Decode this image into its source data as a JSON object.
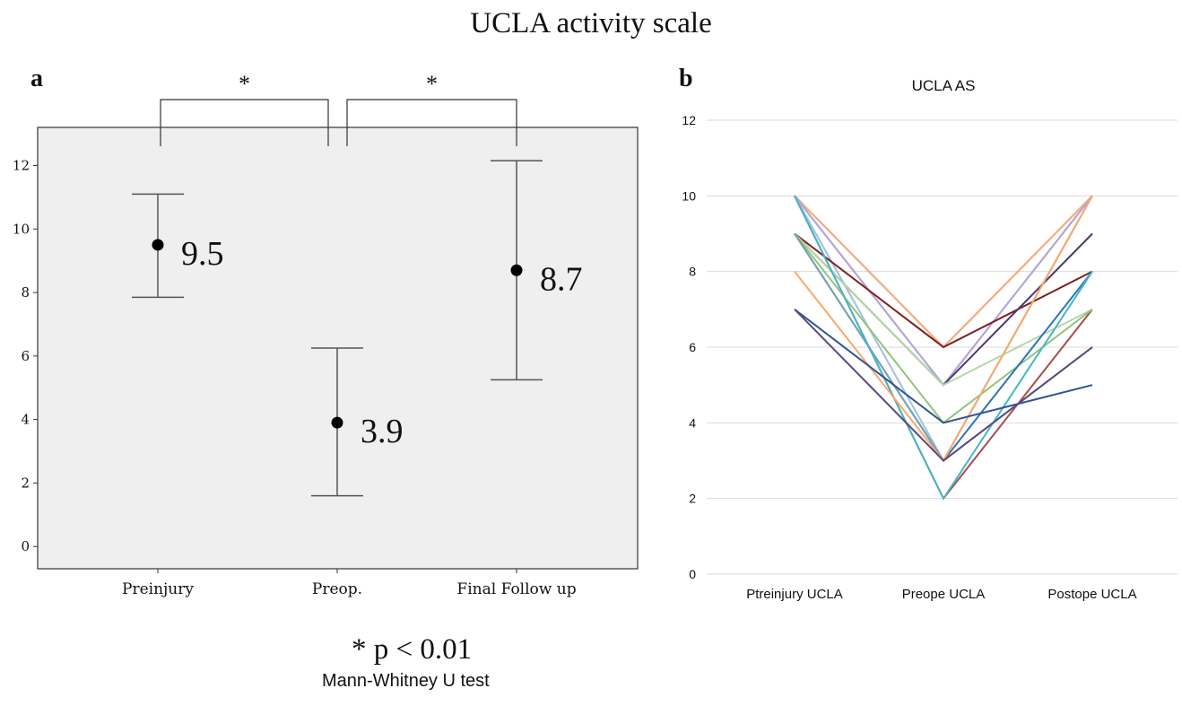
{
  "title": "UCLA  activity scale",
  "panel_a_label": "a",
  "panel_b_label": "b",
  "significance_note": "* p < 0.01",
  "test_note": "Mann-Whitney U test",
  "chart_data": [
    {
      "type": "errorbar",
      "panel": "a",
      "title": "",
      "categories": [
        "Preinjury",
        "Preop.",
        "Final Follow up"
      ],
      "means": [
        9.5,
        3.9,
        8.7
      ],
      "mean_labels": [
        "9.5",
        "3.9",
        "8.7"
      ],
      "upper": [
        11.1,
        6.25,
        12.15
      ],
      "lower": [
        7.85,
        1.6,
        5.25
      ],
      "ylim": [
        -0.7,
        13.2
      ],
      "yticks": [
        0,
        2,
        4,
        6,
        8,
        10,
        12
      ],
      "significance_brackets": [
        {
          "from": "Preinjury",
          "to": "Preop.",
          "label": "*"
        },
        {
          "from": "Preop.",
          "to": "Final Follow up",
          "label": "*"
        }
      ],
      "background": "#efefef"
    },
    {
      "type": "line",
      "panel": "b",
      "title": "UCLA AS",
      "categories": [
        "Ptreinjury UCLA",
        "Preope UCLA",
        "Postope UCLA"
      ],
      "ylim": [
        0,
        12
      ],
      "yticks": [
        0,
        2,
        4,
        6,
        8,
        10,
        12
      ],
      "grid": true,
      "series": [
        {
          "values": [
            10,
            6,
            10
          ],
          "color": "#c55a11"
        },
        {
          "values": [
            10,
            6,
            10
          ],
          "color": "#f4b183"
        },
        {
          "values": [
            10,
            5,
            10
          ],
          "color": "#8e7cc3"
        },
        {
          "values": [
            10,
            5,
            10
          ],
          "color": "#b4a7d6"
        },
        {
          "values": [
            10,
            3,
            10
          ],
          "color": "#f6b26b"
        },
        {
          "values": [
            10,
            3,
            10
          ],
          "color": "#9fc5e8"
        },
        {
          "values": [
            10,
            2,
            7
          ],
          "color": "#a64d4d"
        },
        {
          "values": [
            9,
            6,
            8
          ],
          "color": "#7f1f1f"
        },
        {
          "values": [
            9,
            5,
            9
          ],
          "color": "#4b3b6b"
        },
        {
          "values": [
            9,
            5,
            7
          ],
          "color": "#b6d7a8"
        },
        {
          "values": [
            9,
            4,
            7
          ],
          "color": "#93c47d"
        },
        {
          "values": [
            9,
            3,
            8
          ],
          "color": "#2e75b6"
        },
        {
          "values": [
            9,
            3,
            6
          ],
          "color": "#76a5af"
        },
        {
          "values": [
            10,
            2,
            8
          ],
          "color": "#45b6c8"
        },
        {
          "values": [
            8,
            3,
            10
          ],
          "color": "#f9a86b"
        },
        {
          "values": [
            7,
            4,
            5
          ],
          "color": "#2f5597"
        },
        {
          "values": [
            7,
            3,
            6
          ],
          "color": "#5b4a7a"
        }
      ]
    }
  ]
}
